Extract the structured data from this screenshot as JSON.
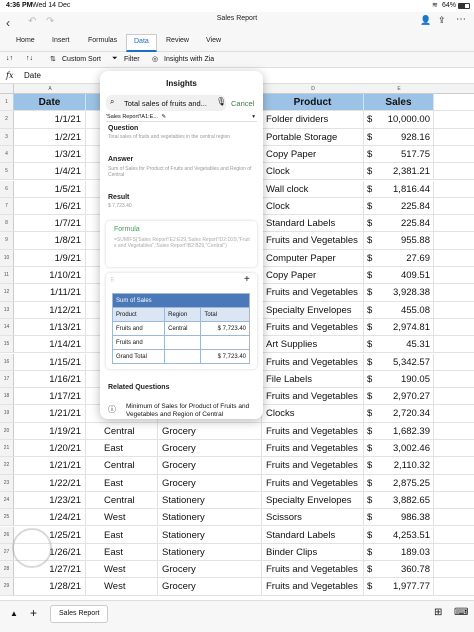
{
  "status": {
    "time": "4:36 PM",
    "date": "Wed 14 Dec",
    "battery": "64%"
  },
  "window": {
    "title": "Sales Report"
  },
  "tabs": [
    {
      "label": "Home"
    },
    {
      "label": "Insert"
    },
    {
      "label": "Formulas"
    },
    {
      "label": "Data",
      "active": true
    },
    {
      "label": "Review"
    },
    {
      "label": "View"
    }
  ],
  "toolbar": {
    "custom_sort": "Custom Sort",
    "filter": "Filter",
    "insights": "Insights with Zia"
  },
  "formula_bar": {
    "fx": "fx",
    "value": "Date"
  },
  "columns": [
    "A",
    "B",
    "C",
    "D",
    "E"
  ],
  "header_row": {
    "date": "Date",
    "product": "Product",
    "sales": "Sales"
  },
  "rows": [
    {
      "n": "2",
      "date": "1/1/21",
      "region": "",
      "category": "",
      "product": "Folder dividers",
      "sales": "10,000.00"
    },
    {
      "n": "3",
      "date": "1/2/21",
      "region": "",
      "category": "",
      "product": "Portable Storage",
      "sales": "928.16"
    },
    {
      "n": "4",
      "date": "1/3/21",
      "region": "",
      "category": "",
      "product": "Copy Paper",
      "sales": "517.75"
    },
    {
      "n": "5",
      "date": "1/4/21",
      "region": "",
      "category": "",
      "product": "Clock",
      "sales": "2,381.21"
    },
    {
      "n": "6",
      "date": "1/5/21",
      "region": "",
      "category": "",
      "product": "Wall clock",
      "sales": "1,816.44"
    },
    {
      "n": "7",
      "date": "1/6/21",
      "region": "",
      "category": "",
      "product": "Clock",
      "sales": "225.84"
    },
    {
      "n": "8",
      "date": "1/7/21",
      "region": "",
      "category": "",
      "product": "Standard Labels",
      "sales": "225.84"
    },
    {
      "n": "9",
      "date": "1/8/21",
      "region": "",
      "category": "",
      "product": "Fruits and Vegetables",
      "sales": "955.88"
    },
    {
      "n": "10",
      "date": "1/9/21",
      "region": "",
      "category": "",
      "product": "Computer Paper",
      "sales": "27.69"
    },
    {
      "n": "11",
      "date": "1/10/21",
      "region": "",
      "category": "",
      "product": "Copy Paper",
      "sales": "409.51"
    },
    {
      "n": "12",
      "date": "1/11/21",
      "region": "",
      "category": "",
      "product": "Fruits and Vegetables",
      "sales": "3,928.38"
    },
    {
      "n": "13",
      "date": "1/12/21",
      "region": "",
      "category": "",
      "product": "Specialty Envelopes",
      "sales": "455.08"
    },
    {
      "n": "14",
      "date": "1/13/21",
      "region": "",
      "category": "",
      "product": "Fruits and Vegetables",
      "sales": "2,974.81"
    },
    {
      "n": "15",
      "date": "1/14/21",
      "region": "",
      "category": "",
      "product": "Art Supplies",
      "sales": "45.31"
    },
    {
      "n": "16",
      "date": "1/15/21",
      "region": "",
      "category": "",
      "product": "Fruits and Vegetables",
      "sales": "5,342.57"
    },
    {
      "n": "17",
      "date": "1/16/21",
      "region": "",
      "category": "",
      "product": "File Labels",
      "sales": "190.05"
    },
    {
      "n": "18",
      "date": "1/17/21",
      "region": "",
      "category": "",
      "product": "Fruits and Vegetables",
      "sales": "2,970.27"
    },
    {
      "n": "19",
      "date": "1/21/21",
      "region": "East",
      "category": "Furniture",
      "product": "Clocks",
      "sales": "2,720.34"
    },
    {
      "n": "20",
      "date": "1/19/21",
      "region": "Central",
      "category": "Grocery",
      "product": "Fruits and Vegetables",
      "sales": "1,682.39"
    },
    {
      "n": "21",
      "date": "1/20/21",
      "region": "East",
      "category": "Grocery",
      "product": "Fruits and Vegetables",
      "sales": "3,002.46"
    },
    {
      "n": "22",
      "date": "1/21/21",
      "region": "Central",
      "category": "Grocery",
      "product": "Fruits and Vegetables",
      "sales": "2,110.32"
    },
    {
      "n": "23",
      "date": "1/22/21",
      "region": "East",
      "category": "Grocery",
      "product": "Fruits and Vegetables",
      "sales": "2,875.25"
    },
    {
      "n": "24",
      "date": "1/23/21",
      "region": "Central",
      "category": "Stationery",
      "product": "Specialty Envelopes",
      "sales": "3,882.65"
    },
    {
      "n": "25",
      "date": "1/24/21",
      "region": "West",
      "category": "Stationery",
      "product": "Scissors",
      "sales": "986.38"
    },
    {
      "n": "26",
      "date": "1/25/21",
      "region": "East",
      "category": "Stationery",
      "product": "Standard Labels",
      "sales": "4,253.51"
    },
    {
      "n": "27",
      "date": "1/26/21",
      "region": "East",
      "category": "Stationery",
      "product": "Binder Clips",
      "sales": "189.03"
    },
    {
      "n": "28",
      "date": "1/27/21",
      "region": "West",
      "category": "Grocery",
      "product": "Fruits and Vegetables",
      "sales": "360.78"
    },
    {
      "n": "29",
      "date": "1/28/21",
      "region": "West",
      "category": "Grocery",
      "product": "Fruits and Vegetables",
      "sales": "1,977.77"
    }
  ],
  "currency_symbol": "$",
  "insights": {
    "title": "Insights",
    "search_value": "Total sales of fruits and...",
    "cancel": "Cancel",
    "range": "'Sales Report'!A1:E...",
    "question_label": "Question",
    "question_text": "Total sales of fruits and vegetables in the central region",
    "answer_label": "Answer",
    "answer_text": "Sum of Sales for Product of Fruits and Vegetables and Region of Central",
    "result_label": "Result",
    "result_value": "$ 7,723.40",
    "formula_label": "Formula",
    "formula_text": "=SUMIFS('Sales Report'!E2:E29,'Sales Report'!D2:D29,\"Fruits and Vegetables\",'Sales Report'!B2:B29,\"Central\")",
    "pivot": {
      "title": "Sum of Sales",
      "headers": [
        "Product",
        "Region",
        "Total"
      ],
      "rows": [
        [
          "Fruits and",
          "Central",
          "$ 7,723.40"
        ],
        [
          "Fruits and",
          "",
          ""
        ],
        [
          "Grand Total",
          "",
          "$ 7,723.40"
        ]
      ]
    },
    "related_label": "Related Questions",
    "related_1": "Minimum of Sales for Product of Fruits and Vegetables and Region of Central"
  },
  "sheet_tab": "Sales Report"
}
